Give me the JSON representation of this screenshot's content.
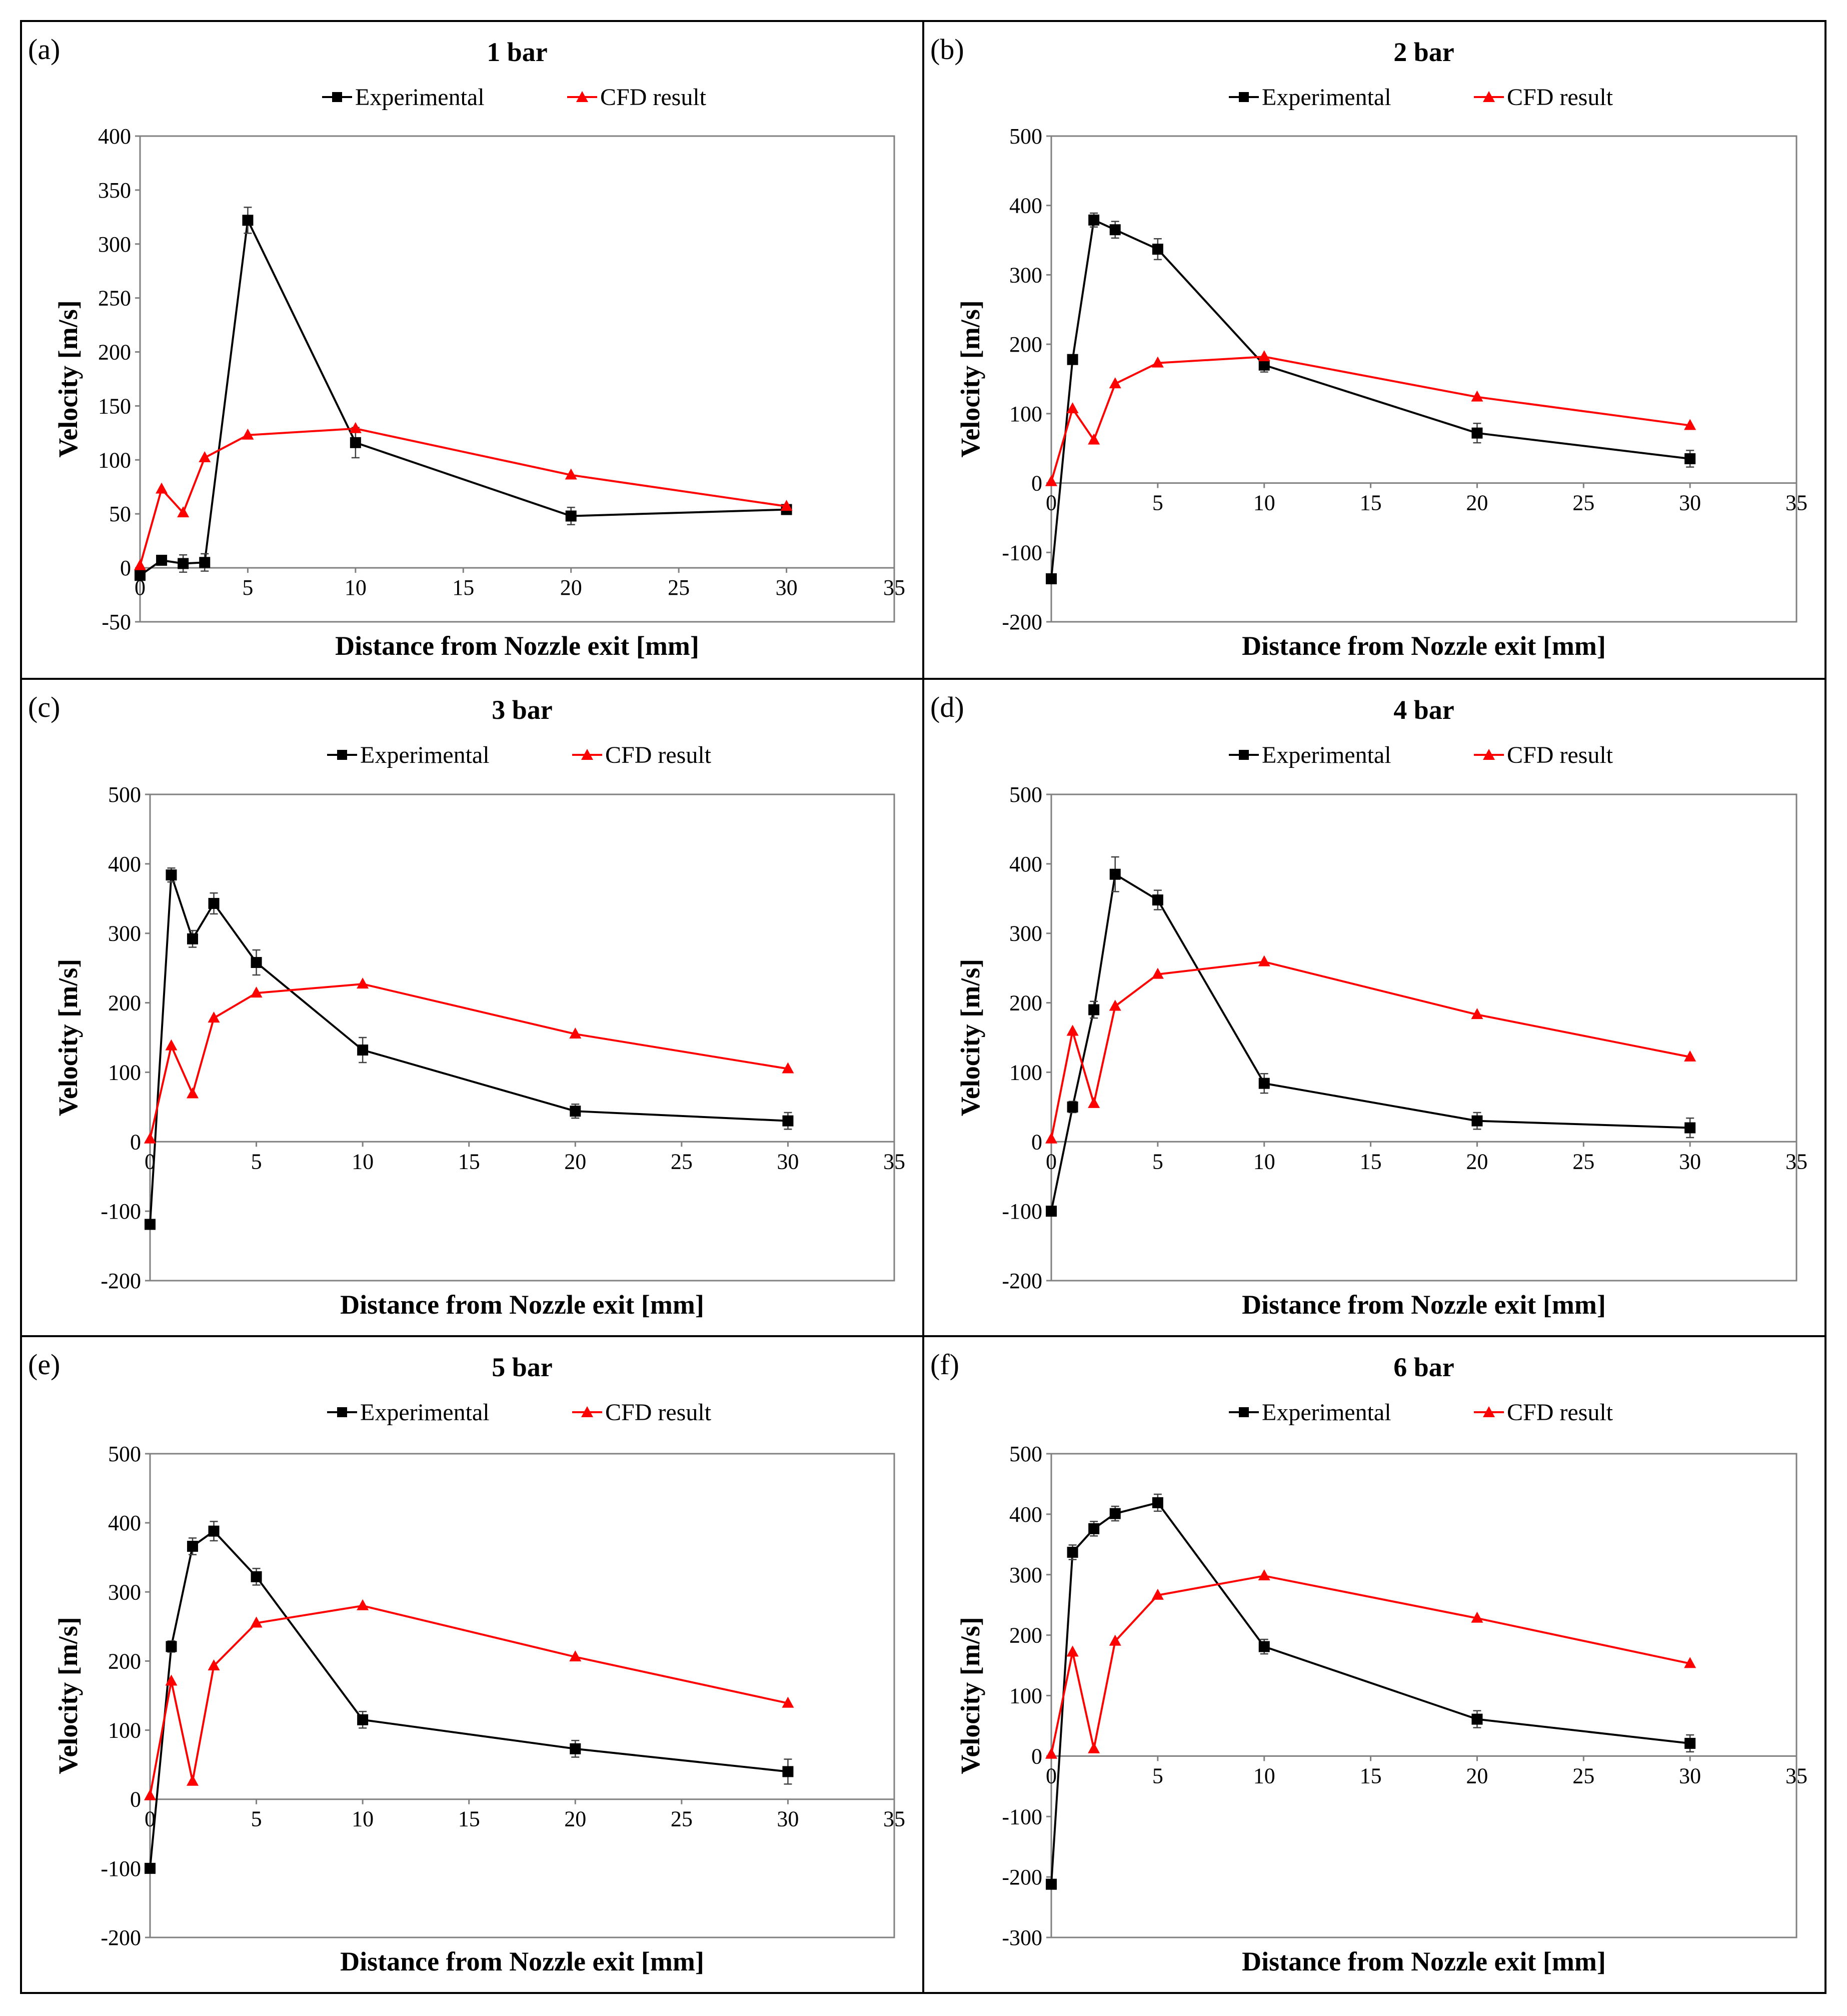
{
  "figure": {
    "legend": {
      "experimental": "Experimental",
      "cfd": "CFD result"
    },
    "colors": {
      "experimental": "#000000",
      "cfd": "#ff0000",
      "frame": "#000000",
      "plot_border": "#808080"
    }
  },
  "chart_data": [
    {
      "type": "line",
      "panel_label": "(a)",
      "title": "1 bar",
      "xlabel": "Distance from Nozzle exit [mm]",
      "ylabel": "Velocity [m/s]",
      "xlim": [
        0,
        35
      ],
      "ylim": [
        -50,
        400
      ],
      "xticks": [
        0,
        5,
        10,
        15,
        20,
        25,
        30,
        35
      ],
      "yticks": [
        -50,
        0,
        50,
        100,
        150,
        200,
        250,
        300,
        350,
        400
      ],
      "grid": false,
      "series": [
        {
          "name": "Experimental",
          "marker": "square",
          "x": [
            0,
            1,
            2,
            3,
            5,
            10,
            20,
            30
          ],
          "y": [
            -7,
            7,
            4,
            5,
            322,
            116,
            48,
            54
          ],
          "err": [
            3,
            4,
            8,
            8,
            12,
            14,
            8,
            3
          ]
        },
        {
          "name": "CFD result",
          "marker": "triangle",
          "x": [
            0,
            1,
            2,
            3,
            5,
            10,
            20,
            30
          ],
          "y": [
            2,
            73,
            51,
            102,
            123,
            129,
            86,
            57
          ]
        }
      ]
    },
    {
      "type": "line",
      "panel_label": "(b)",
      "title": "2 bar",
      "xlabel": "Distance from Nozzle exit [mm]",
      "ylabel": "Velocity [m/s]",
      "xlim": [
        0,
        35
      ],
      "ylim": [
        -200,
        500
      ],
      "xticks": [
        0,
        5,
        10,
        15,
        20,
        25,
        30,
        35
      ],
      "yticks": [
        -200,
        -100,
        0,
        100,
        200,
        300,
        400,
        500
      ],
      "grid": false,
      "series": [
        {
          "name": "Experimental",
          "marker": "square",
          "x": [
            0,
            1,
            2,
            3,
            5,
            10,
            20,
            30
          ],
          "y": [
            -138,
            178,
            379,
            365,
            337,
            170,
            72,
            35
          ],
          "err": [
            5,
            6,
            10,
            12,
            15,
            10,
            14,
            12
          ]
        },
        {
          "name": "CFD result",
          "marker": "triangle",
          "x": [
            0,
            1,
            2,
            3,
            5,
            10,
            20,
            30
          ],
          "y": [
            2,
            107,
            62,
            143,
            173,
            182,
            124,
            83
          ]
        }
      ]
    },
    {
      "type": "line",
      "panel_label": "(c)",
      "title": "3 bar",
      "xlabel": "Distance from Nozzle exit [mm]",
      "ylabel": "Velocity [m/s]",
      "xlim": [
        0,
        35
      ],
      "ylim": [
        -200,
        500
      ],
      "xticks": [
        0,
        5,
        10,
        15,
        20,
        25,
        30,
        35
      ],
      "yticks": [
        -200,
        -100,
        0,
        100,
        200,
        300,
        400,
        500
      ],
      "grid": false,
      "series": [
        {
          "name": "Experimental",
          "marker": "square",
          "x": [
            0,
            1,
            2,
            3,
            5,
            10,
            20,
            30
          ],
          "y": [
            -119,
            384,
            292,
            343,
            258,
            132,
            44,
            30
          ],
          "err": [
            5,
            10,
            12,
            15,
            18,
            18,
            10,
            12
          ]
        },
        {
          "name": "CFD result",
          "marker": "triangle",
          "x": [
            0,
            1,
            2,
            3,
            5,
            10,
            20,
            30
          ],
          "y": [
            4,
            138,
            69,
            178,
            214,
            227,
            155,
            105
          ]
        }
      ]
    },
    {
      "type": "line",
      "panel_label": "(d)",
      "title": "4 bar",
      "xlabel": "Distance from Nozzle exit [mm]",
      "ylabel": "Velocity [m/s]",
      "xlim": [
        0,
        35
      ],
      "ylim": [
        -200,
        500
      ],
      "xticks": [
        0,
        5,
        10,
        15,
        20,
        25,
        30,
        35
      ],
      "yticks": [
        -200,
        -100,
        0,
        100,
        200,
        300,
        400,
        500
      ],
      "grid": false,
      "series": [
        {
          "name": "Experimental",
          "marker": "square",
          "x": [
            0,
            1,
            2,
            3,
            5,
            10,
            20,
            30
          ],
          "y": [
            -100,
            50,
            190,
            385,
            348,
            84,
            30,
            20
          ],
          "err": [
            5,
            8,
            12,
            25,
            14,
            14,
            12,
            14
          ]
        },
        {
          "name": "CFD result",
          "marker": "triangle",
          "x": [
            0,
            1,
            2,
            3,
            5,
            10,
            20,
            30
          ],
          "y": [
            4,
            159,
            55,
            195,
            241,
            259,
            183,
            122
          ]
        }
      ]
    },
    {
      "type": "line",
      "panel_label": "(e)",
      "title": "5 bar",
      "xlabel": "Distance from Nozzle exit [mm]",
      "ylabel": "Velocity [m/s]",
      "xlim": [
        0,
        35
      ],
      "ylim": [
        -200,
        500
      ],
      "xticks": [
        0,
        5,
        10,
        15,
        20,
        25,
        30,
        35
      ],
      "yticks": [
        -200,
        -100,
        0,
        100,
        200,
        300,
        400,
        500
      ],
      "grid": false,
      "series": [
        {
          "name": "Experimental",
          "marker": "square",
          "x": [
            0,
            1,
            2,
            3,
            5,
            10,
            20,
            30
          ],
          "y": [
            -100,
            221,
            366,
            388,
            322,
            115,
            73,
            40
          ],
          "err": [
            5,
            8,
            12,
            14,
            12,
            12,
            12,
            18
          ]
        },
        {
          "name": "CFD result",
          "marker": "triangle",
          "x": [
            0,
            1,
            2,
            3,
            5,
            10,
            20,
            30
          ],
          "y": [
            5,
            171,
            26,
            193,
            255,
            280,
            206,
            139
          ]
        }
      ]
    },
    {
      "type": "line",
      "panel_label": "(f)",
      "title": "6 bar",
      "xlabel": "Distance from Nozzle exit [mm]",
      "ylabel": "Velocity [m/s]",
      "xlim": [
        0,
        35
      ],
      "ylim": [
        -300,
        500
      ],
      "xticks": [
        0,
        5,
        10,
        15,
        20,
        25,
        30,
        35
      ],
      "yticks": [
        -300,
        -200,
        -100,
        0,
        100,
        200,
        300,
        400,
        500
      ],
      "grid": false,
      "series": [
        {
          "name": "Experimental",
          "marker": "square",
          "x": [
            0,
            1,
            2,
            3,
            5,
            10,
            20,
            30
          ],
          "y": [
            -212,
            337,
            376,
            401,
            419,
            181,
            61,
            21
          ],
          "err": [
            5,
            12,
            12,
            12,
            14,
            12,
            14,
            14
          ]
        },
        {
          "name": "CFD result",
          "marker": "triangle",
          "x": [
            0,
            1,
            2,
            3,
            5,
            10,
            20,
            30
          ],
          "y": [
            3,
            172,
            12,
            190,
            266,
            298,
            228,
            153
          ]
        }
      ]
    }
  ]
}
